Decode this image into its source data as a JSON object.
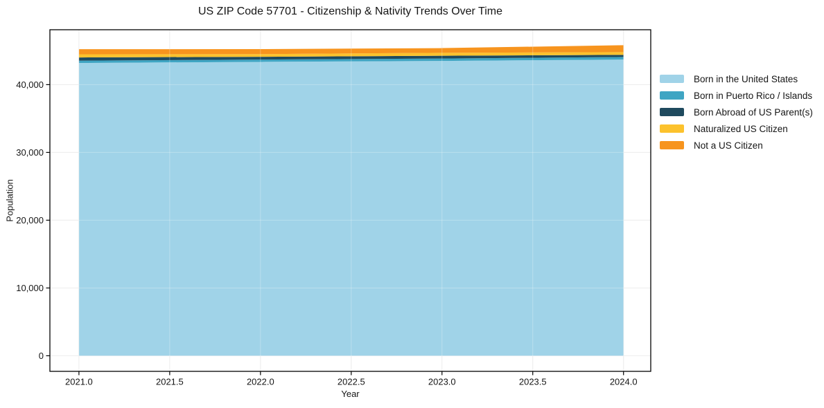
{
  "chart_data": {
    "type": "area",
    "stacked": true,
    "title": "US ZIP Code 57701 - Citizenship & Nativity Trends Over Time",
    "xlabel": "Year",
    "ylabel": "Population",
    "x": [
      2021,
      2022,
      2023,
      2024
    ],
    "series": [
      {
        "name": "Born in the United States",
        "color": "#a0d3e8",
        "values": [
          43200,
          43360,
          43500,
          43700
        ]
      },
      {
        "name": "Born in Puerto Rico / Islands",
        "color": "#3fa5c3",
        "values": [
          340,
          340,
          350,
          380
        ]
      },
      {
        "name": "Born Abroad of US Parent(s)",
        "color": "#1f4a5e",
        "values": [
          470,
          410,
          410,
          310
        ]
      },
      {
        "name": "Naturalized US Citizen",
        "color": "#fcc22d",
        "values": [
          470,
          390,
          440,
          410
        ]
      },
      {
        "name": "Not a US Citizen",
        "color": "#f7941e",
        "values": [
          750,
          740,
          690,
          1020
        ]
      }
    ],
    "x_ticks": [
      2021.0,
      2021.5,
      2022.0,
      2022.5,
      2023.0,
      2023.5,
      2024.0
    ],
    "y_ticks": [
      0,
      10000,
      20000,
      30000,
      40000
    ],
    "y_tick_labels": [
      "0",
      "10,000",
      "20,000",
      "30,000",
      "40,000"
    ],
    "xlim": [
      2020.84,
      2024.15
    ],
    "ylim": [
      -2300,
      48100
    ],
    "grid": true,
    "legend_position": "right"
  },
  "style": {
    "grid_color": "#e7e7e7",
    "spine_color": "#000000",
    "text_color": "#151515",
    "background": "#ffffff"
  }
}
